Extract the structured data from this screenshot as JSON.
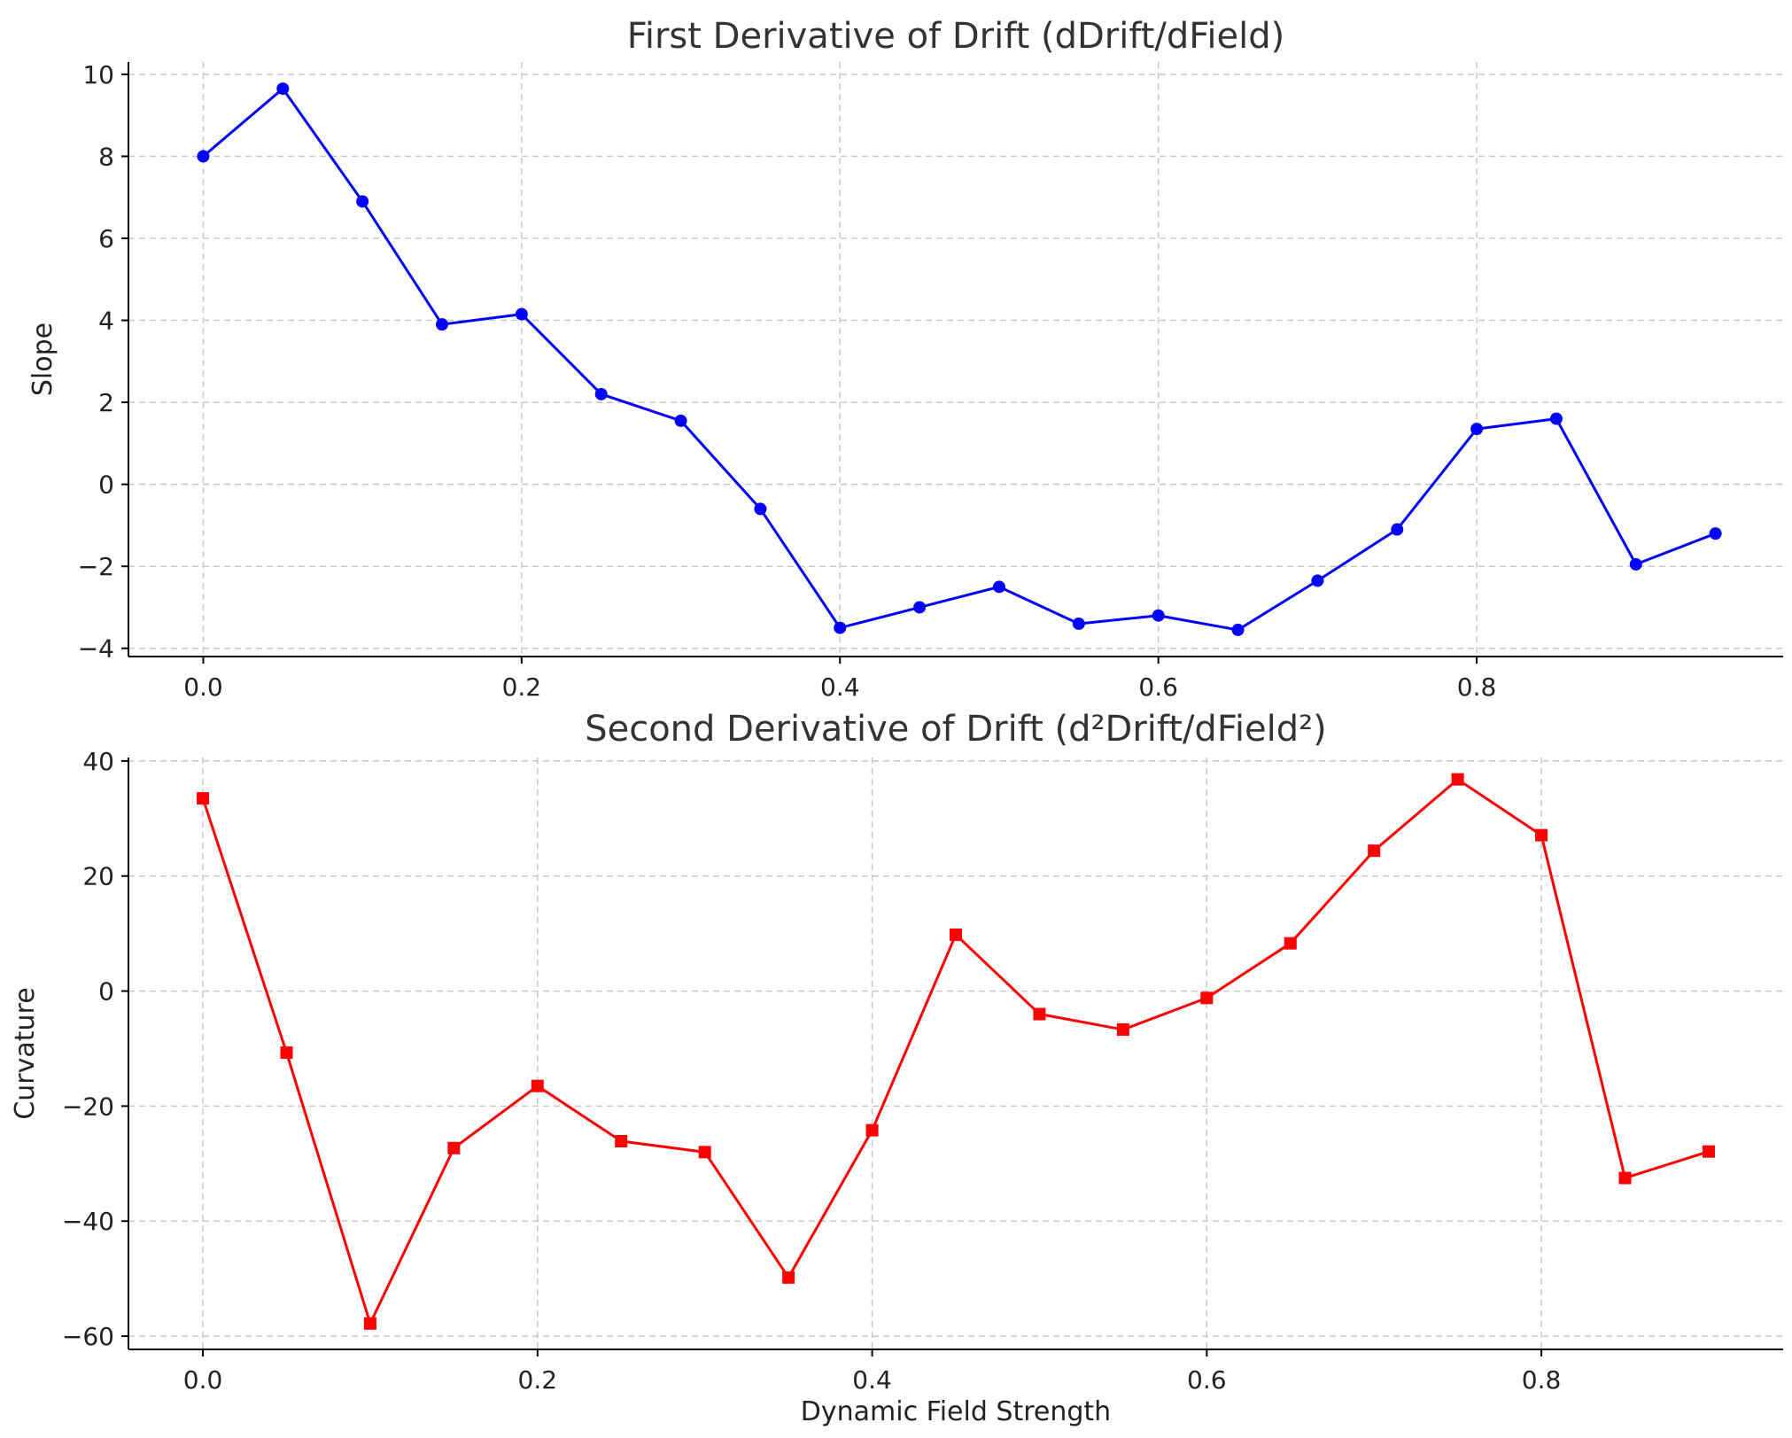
{
  "chart_data": [
    {
      "type": "line",
      "title": "First Derivative of Drift (dDrift/dField)",
      "xlabel": "",
      "ylabel": "Slope",
      "xlim": [
        -0.047,
        0.9925
      ],
      "ylim": [
        -4.2,
        10.3
      ],
      "xticks": [
        0.0,
        0.2,
        0.4,
        0.6,
        0.8
      ],
      "xtick_labels": [
        "0.0",
        "0.2",
        "0.4",
        "0.6",
        "0.8"
      ],
      "yticks": [
        -4,
        -2,
        0,
        2,
        4,
        6,
        8,
        10
      ],
      "ytick_labels": [
        "−4",
        "−2",
        "0",
        "2",
        "4",
        "6",
        "8",
        "10"
      ],
      "grid": true,
      "color": "#0000ff",
      "marker": "circle",
      "x": [
        0.0,
        0.05,
        0.1,
        0.15,
        0.2,
        0.25,
        0.3,
        0.35,
        0.4,
        0.45,
        0.5,
        0.55,
        0.6,
        0.65,
        0.7,
        0.75,
        0.8,
        0.85,
        0.9,
        0.95
      ],
      "y": [
        8.0,
        9.65,
        6.9,
        3.9,
        4.15,
        2.2,
        1.55,
        -0.6,
        -3.5,
        -3.0,
        -2.5,
        -3.4,
        -3.2,
        -3.55,
        -2.35,
        -1.1,
        1.35,
        1.6,
        -1.95,
        -1.2
      ]
    },
    {
      "type": "line",
      "title": "Second Derivative of Drift (d²Drift/dField²)",
      "xlabel": "Dynamic Field Strength",
      "ylabel": "Curvature",
      "xlim": [
        -0.0445,
        0.9445
      ],
      "ylim": [
        -62.3,
        40.6
      ],
      "xticks": [
        0.0,
        0.2,
        0.4,
        0.6,
        0.8
      ],
      "xtick_labels": [
        "0.0",
        "0.2",
        "0.4",
        "0.6",
        "0.8"
      ],
      "yticks": [
        -60,
        -40,
        -20,
        0,
        20,
        40
      ],
      "ytick_labels": [
        "−60",
        "−40",
        "−20",
        "0",
        "20",
        "40"
      ],
      "grid": true,
      "color": "#ff0000",
      "marker": "square",
      "x": [
        0.0,
        0.05,
        0.1,
        0.15,
        0.2,
        0.25,
        0.3,
        0.35,
        0.4,
        0.45,
        0.5,
        0.55,
        0.6,
        0.65,
        0.7,
        0.75,
        0.8,
        0.85,
        0.9
      ],
      "y": [
        33.5,
        -10.7,
        -57.8,
        -27.3,
        -16.5,
        -26.1,
        -28.0,
        -49.8,
        -24.2,
        9.8,
        -4.0,
        -6.7,
        -1.2,
        8.3,
        24.4,
        36.8,
        27.1,
        -32.5,
        -27.9
      ]
    }
  ]
}
